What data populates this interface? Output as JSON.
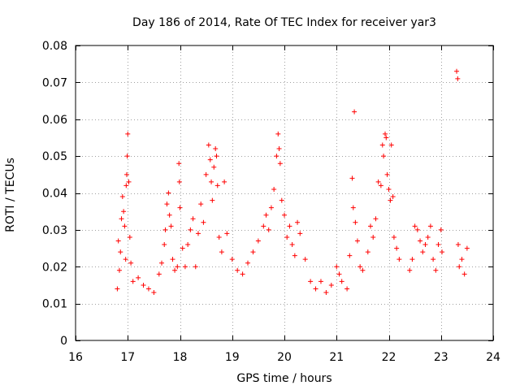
{
  "chart_data": {
    "type": "scatter",
    "title": "Day 186 of 2014, Rate Of TEC Index for receiver yar3",
    "xlabel": "GPS time / hours",
    "ylabel": "ROTI / TECUs",
    "xlim": [
      16,
      24
    ],
    "ylim": [
      0,
      0.08
    ],
    "x_ticks": [
      16,
      17,
      18,
      19,
      20,
      21,
      22,
      23,
      24
    ],
    "x_tick_labels": [
      "16",
      "17",
      "18",
      "19",
      "20",
      "21",
      "22",
      "23",
      "24"
    ],
    "y_ticks": [
      0,
      0.01,
      0.02,
      0.03,
      0.04,
      0.05,
      0.06,
      0.07,
      0.08
    ],
    "y_tick_labels": [
      "0",
      "0.01",
      "0.02",
      "0.03",
      "0.04",
      "0.05",
      "0.06",
      "0.07",
      "0.08"
    ],
    "grid": true,
    "marker": "+",
    "colors": {
      "points": "#ff0000",
      "grid": "#a0a0a0",
      "axes": "#000000"
    },
    "series": [
      {
        "name": "ROTI",
        "points": [
          [
            16.8,
            0.014
          ],
          [
            16.82,
            0.027
          ],
          [
            16.84,
            0.019
          ],
          [
            16.86,
            0.024
          ],
          [
            16.88,
            0.033
          ],
          [
            16.9,
            0.039
          ],
          [
            16.92,
            0.035
          ],
          [
            16.94,
            0.031
          ],
          [
            16.96,
            0.022
          ],
          [
            16.97,
            0.042
          ],
          [
            16.98,
            0.045
          ],
          [
            16.99,
            0.05
          ],
          [
            17.0,
            0.056
          ],
          [
            17.02,
            0.043
          ],
          [
            17.04,
            0.028
          ],
          [
            17.06,
            0.021
          ],
          [
            17.1,
            0.016
          ],
          [
            17.2,
            0.017
          ],
          [
            17.3,
            0.015
          ],
          [
            17.4,
            0.014
          ],
          [
            17.5,
            0.013
          ],
          [
            17.6,
            0.018
          ],
          [
            17.65,
            0.021
          ],
          [
            17.7,
            0.026
          ],
          [
            17.72,
            0.03
          ],
          [
            17.75,
            0.037
          ],
          [
            17.78,
            0.04
          ],
          [
            17.8,
            0.034
          ],
          [
            17.83,
            0.031
          ],
          [
            17.86,
            0.022
          ],
          [
            17.9,
            0.019
          ],
          [
            17.95,
            0.02
          ],
          [
            17.98,
            0.048
          ],
          [
            17.99,
            0.043
          ],
          [
            18.0,
            0.036
          ],
          [
            18.05,
            0.025
          ],
          [
            18.1,
            0.02
          ],
          [
            18.15,
            0.026
          ],
          [
            18.2,
            0.03
          ],
          [
            18.25,
            0.033
          ],
          [
            18.3,
            0.02
          ],
          [
            18.35,
            0.029
          ],
          [
            18.4,
            0.037
          ],
          [
            18.45,
            0.032
          ],
          [
            18.5,
            0.045
          ],
          [
            18.55,
            0.053
          ],
          [
            18.58,
            0.049
          ],
          [
            18.6,
            0.043
          ],
          [
            18.62,
            0.038
          ],
          [
            18.65,
            0.047
          ],
          [
            18.68,
            0.052
          ],
          [
            18.7,
            0.05
          ],
          [
            18.72,
            0.042
          ],
          [
            18.75,
            0.028
          ],
          [
            18.8,
            0.024
          ],
          [
            18.85,
            0.043
          ],
          [
            18.9,
            0.029
          ],
          [
            19.0,
            0.022
          ],
          [
            19.1,
            0.019
          ],
          [
            19.2,
            0.018
          ],
          [
            19.3,
            0.021
          ],
          [
            19.4,
            0.024
          ],
          [
            19.5,
            0.027
          ],
          [
            19.6,
            0.031
          ],
          [
            19.65,
            0.034
          ],
          [
            19.7,
            0.03
          ],
          [
            19.75,
            0.036
          ],
          [
            19.8,
            0.041
          ],
          [
            19.85,
            0.05
          ],
          [
            19.88,
            0.056
          ],
          [
            19.9,
            0.052
          ],
          [
            19.92,
            0.048
          ],
          [
            19.95,
            0.038
          ],
          [
            20.0,
            0.034
          ],
          [
            20.05,
            0.028
          ],
          [
            20.1,
            0.031
          ],
          [
            20.15,
            0.026
          ],
          [
            20.2,
            0.023
          ],
          [
            20.25,
            0.032
          ],
          [
            20.3,
            0.029
          ],
          [
            20.4,
            0.022
          ],
          [
            20.5,
            0.016
          ],
          [
            20.6,
            0.014
          ],
          [
            20.7,
            0.016
          ],
          [
            20.8,
            0.013
          ],
          [
            20.9,
            0.015
          ],
          [
            21.0,
            0.02
          ],
          [
            21.05,
            0.018
          ],
          [
            21.1,
            0.016
          ],
          [
            21.2,
            0.014
          ],
          [
            21.25,
            0.023
          ],
          [
            21.3,
            0.044
          ],
          [
            21.32,
            0.036
          ],
          [
            21.34,
            0.062
          ],
          [
            21.36,
            0.032
          ],
          [
            21.4,
            0.027
          ],
          [
            21.45,
            0.02
          ],
          [
            21.5,
            0.019
          ],
          [
            21.6,
            0.024
          ],
          [
            21.65,
            0.031
          ],
          [
            21.7,
            0.028
          ],
          [
            21.75,
            0.033
          ],
          [
            21.8,
            0.043
          ],
          [
            21.85,
            0.042
          ],
          [
            21.88,
            0.053
          ],
          [
            21.9,
            0.05
          ],
          [
            21.93,
            0.056
          ],
          [
            21.95,
            0.055
          ],
          [
            21.97,
            0.045
          ],
          [
            22.0,
            0.041
          ],
          [
            22.03,
            0.038
          ],
          [
            22.05,
            0.053
          ],
          [
            22.08,
            0.039
          ],
          [
            22.1,
            0.028
          ],
          [
            22.15,
            0.025
          ],
          [
            22.2,
            0.022
          ],
          [
            22.4,
            0.019
          ],
          [
            22.45,
            0.022
          ],
          [
            22.5,
            0.031
          ],
          [
            22.55,
            0.03
          ],
          [
            22.6,
            0.027
          ],
          [
            22.65,
            0.024
          ],
          [
            22.7,
            0.026
          ],
          [
            22.75,
            0.028
          ],
          [
            22.8,
            0.031
          ],
          [
            22.85,
            0.022
          ],
          [
            22.9,
            0.019
          ],
          [
            22.95,
            0.026
          ],
          [
            23.0,
            0.03
          ],
          [
            23.02,
            0.024
          ],
          [
            23.3,
            0.073
          ],
          [
            23.32,
            0.071
          ],
          [
            23.33,
            0.026
          ],
          [
            23.35,
            0.02
          ],
          [
            23.4,
            0.022
          ],
          [
            23.45,
            0.018
          ],
          [
            23.5,
            0.025
          ]
        ]
      }
    ]
  }
}
